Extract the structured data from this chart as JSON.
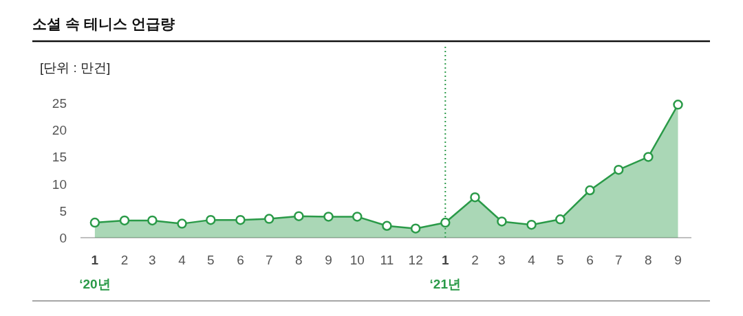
{
  "chart_data": {
    "type": "area",
    "title": "소셜 속 테니스 언급량",
    "ylabel": "[단위 : 만건]",
    "x": [
      "2020-01",
      "2020-02",
      "2020-03",
      "2020-04",
      "2020-05",
      "2020-06",
      "2020-07",
      "2020-08",
      "2020-09",
      "2020-10",
      "2020-11",
      "2020-12",
      "2021-01",
      "2021-02",
      "2021-03",
      "2021-04",
      "2021-05",
      "2021-06",
      "2021-07",
      "2021-08",
      "2021-09"
    ],
    "series": [
      {
        "color": "#2a9a48",
        "values": [
          2.8,
          3.2,
          3.2,
          2.6,
          3.3,
          3.3,
          3.5,
          4.0,
          3.9,
          3.9,
          2.2,
          1.7,
          2.8,
          7.5,
          3.0,
          2.4,
          3.4,
          8.8,
          12.6,
          15.0,
          24.7
        ]
      }
    ],
    "marker": "circle",
    "xlim": [
      "2019-12-17",
      "2021-09-15"
    ],
    "xticks": [
      {
        "value": "2020-01",
        "label": "1\n‘20년"
      },
      {
        "value": "2020-02",
        "label": "2"
      },
      {
        "value": "2020-03",
        "label": "3"
      },
      {
        "value": "2020-04",
        "label": "4"
      },
      {
        "value": "2020-05",
        "label": "5"
      },
      {
        "value": "2020-06",
        "label": "6"
      },
      {
        "value": "2020-07",
        "label": "7"
      },
      {
        "value": "2020-08",
        "label": "8"
      },
      {
        "value": "2020-09",
        "label": "9"
      },
      {
        "value": "2020-10",
        "label": "10"
      },
      {
        "value": "2020-11",
        "label": "11"
      },
      {
        "value": "2020-12",
        "label": "12"
      },
      {
        "value": "2021-01",
        "label": "1\n‘21년"
      },
      {
        "value": "2021-02",
        "label": "2"
      },
      {
        "value": "2021-03",
        "label": "3"
      },
      {
        "value": "2021-04",
        "label": "4"
      },
      {
        "value": "2021-05",
        "label": "5"
      },
      {
        "value": "2021-06",
        "label": "6"
      },
      {
        "value": "2021-07",
        "label": "7"
      },
      {
        "value": "2021-08",
        "label": "8"
      },
      {
        "value": "2021-09",
        "label": "9"
      }
    ],
    "ylim": [
      0,
      25
    ],
    "yticks": [
      0,
      5,
      10,
      15,
      20,
      25
    ],
    "ref_lines": [
      {
        "axis": "x",
        "value": "2021-01",
        "color": "#2a9a48",
        "line_style": "dotted"
      }
    ]
  }
}
